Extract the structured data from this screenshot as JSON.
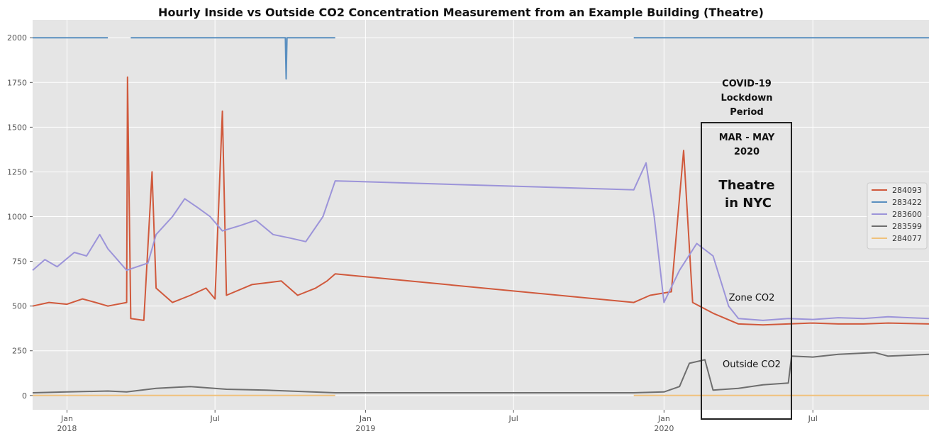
{
  "chart_data": {
    "type": "line",
    "title": "Hourly Inside vs Outside CO2 Concentration Measurement from an Example Building (Theatre)",
    "xlabel": "",
    "ylabel": "",
    "ylim": [
      -80,
      2100
    ],
    "xlim": [
      "2017-11-20",
      "2020-11-20"
    ],
    "grid": true,
    "legend_position": "right",
    "y_ticks": [
      0,
      250,
      500,
      750,
      1000,
      1250,
      1500,
      1750,
      2000
    ],
    "x_ticks": [
      {
        "date": "2018-01-01",
        "label": "Jan",
        "year": "2018"
      },
      {
        "date": "2018-07-01",
        "label": "Jul",
        "year": ""
      },
      {
        "date": "2019-01-01",
        "label": "Jan",
        "year": "2019"
      },
      {
        "date": "2019-07-01",
        "label": "Jul",
        "year": ""
      },
      {
        "date": "2020-01-01",
        "label": "Jan",
        "year": "2020"
      },
      {
        "date": "2020-07-01",
        "label": "Jul",
        "year": ""
      }
    ],
    "series": [
      {
        "name": "284093",
        "color": "#d0593c",
        "points": [
          [
            "2017-11-20",
            500
          ],
          [
            "2017-12-10",
            520
          ],
          [
            "2018-01-01",
            510
          ],
          [
            "2018-01-20",
            540
          ],
          [
            "2018-02-05",
            520
          ],
          [
            "2018-02-20",
            500
          ],
          [
            "2018-03-15",
            520
          ],
          [
            "2018-03-16",
            1780
          ],
          [
            "2018-03-20",
            430
          ],
          [
            "2018-04-05",
            420
          ],
          [
            "2018-04-15",
            1250
          ],
          [
            "2018-04-20",
            600
          ],
          [
            "2018-05-10",
            520
          ],
          [
            "2018-06-01",
            560
          ],
          [
            "2018-06-20",
            600
          ],
          [
            "2018-07-01",
            540
          ],
          [
            "2018-07-10",
            1590
          ],
          [
            "2018-07-15",
            560
          ],
          [
            "2018-08-15",
            620
          ],
          [
            "2018-09-20",
            640
          ],
          [
            "2018-10-10",
            560
          ],
          [
            "2018-11-01",
            600
          ],
          [
            "2018-11-15",
            640
          ],
          [
            "2018-11-25",
            680
          ],
          [
            "2019-11-25",
            520
          ],
          [
            "2019-12-15",
            560
          ],
          [
            "2020-01-10",
            580
          ],
          [
            "2020-01-25",
            1370
          ],
          [
            "2020-02-05",
            520
          ],
          [
            "2020-03-01",
            460
          ],
          [
            "2020-04-01",
            400
          ],
          [
            "2020-05-01",
            395
          ],
          [
            "2020-06-01",
            400
          ],
          [
            "2020-07-01",
            405
          ],
          [
            "2020-08-01",
            400
          ],
          [
            "2020-09-01",
            400
          ],
          [
            "2020-10-01",
            405
          ],
          [
            "2020-11-20",
            400
          ]
        ]
      },
      {
        "name": "283422",
        "color": "#5a8fc0",
        "points": [
          [
            "2017-11-20",
            2000
          ],
          [
            "2018-02-20",
            2000
          ],
          null,
          [
            "2018-03-20",
            2000
          ],
          [
            "2018-09-25",
            2000
          ],
          [
            "2018-09-26",
            1770
          ],
          [
            "2018-09-27",
            2000
          ],
          [
            "2018-11-25",
            2000
          ],
          null,
          [
            "2019-11-25",
            2000
          ],
          [
            "2020-11-20",
            2000
          ]
        ]
      },
      {
        "name": "283600",
        "color": "#9c94d9",
        "points": [
          [
            "2017-11-20",
            700
          ],
          [
            "2017-12-05",
            760
          ],
          [
            "2017-12-20",
            720
          ],
          [
            "2018-01-10",
            800
          ],
          [
            "2018-01-25",
            780
          ],
          [
            "2018-02-10",
            900
          ],
          [
            "2018-02-20",
            820
          ],
          [
            "2018-03-15",
            700
          ],
          [
            "2018-04-10",
            740
          ],
          [
            "2018-04-20",
            900
          ],
          [
            "2018-05-10",
            1000
          ],
          [
            "2018-05-25",
            1100
          ],
          [
            "2018-06-10",
            1050
          ],
          [
            "2018-06-25",
            1000
          ],
          [
            "2018-07-10",
            920
          ],
          [
            "2018-08-01",
            950
          ],
          [
            "2018-08-20",
            980
          ],
          [
            "2018-09-10",
            900
          ],
          [
            "2018-10-01",
            880
          ],
          [
            "2018-10-20",
            860
          ],
          [
            "2018-11-10",
            1000
          ],
          [
            "2018-11-25",
            1200
          ],
          [
            "2019-11-25",
            1150
          ],
          [
            "2019-12-10",
            1300
          ],
          [
            "2019-12-20",
            1000
          ],
          [
            "2020-01-01",
            520
          ],
          [
            "2020-01-20",
            700
          ],
          [
            "2020-02-10",
            850
          ],
          [
            "2020-03-01",
            780
          ],
          [
            "2020-03-20",
            500
          ],
          [
            "2020-04-01",
            430
          ],
          [
            "2020-05-01",
            420
          ],
          [
            "2020-06-01",
            430
          ],
          [
            "2020-07-01",
            425
          ],
          [
            "2020-08-01",
            435
          ],
          [
            "2020-09-01",
            430
          ],
          [
            "2020-10-01",
            440
          ],
          [
            "2020-11-20",
            430
          ]
        ]
      },
      {
        "name": "283599",
        "color": "#6e6e6e",
        "points": [
          [
            "2017-11-20",
            15
          ],
          [
            "2018-01-01",
            20
          ],
          [
            "2018-02-20",
            25
          ],
          [
            "2018-03-15",
            20
          ],
          [
            "2018-04-20",
            40
          ],
          [
            "2018-06-01",
            50
          ],
          [
            "2018-07-15",
            35
          ],
          [
            "2018-09-01",
            30
          ],
          [
            "2018-11-25",
            15
          ],
          [
            "2019-11-25",
            15
          ],
          [
            "2020-01-01",
            20
          ],
          [
            "2020-01-20",
            50
          ],
          [
            "2020-02-01",
            180
          ],
          [
            "2020-02-20",
            200
          ],
          [
            "2020-03-01",
            30
          ],
          [
            "2020-04-01",
            40
          ],
          [
            "2020-05-01",
            60
          ],
          [
            "2020-06-01",
            70
          ],
          [
            "2020-06-05",
            220
          ],
          [
            "2020-07-01",
            215
          ],
          [
            "2020-08-01",
            230
          ],
          [
            "2020-09-15",
            240
          ],
          [
            "2020-10-01",
            220
          ],
          [
            "2020-11-20",
            230
          ]
        ]
      },
      {
        "name": "284077",
        "color": "#f0c27c",
        "points": [
          [
            "2017-11-20",
            0
          ],
          [
            "2018-11-25",
            0
          ],
          null,
          [
            "2019-11-25",
            0
          ],
          [
            "2020-11-20",
            0
          ]
        ]
      }
    ],
    "annotations": {
      "covid_title": [
        "COVID-19",
        "Lockdown",
        "Period"
      ],
      "covid_months": [
        "MAR - MAY",
        "2020"
      ],
      "location": [
        "Theatre",
        "in NYC"
      ],
      "zone_label": "Zone CO2",
      "outside_label": "Outside CO2"
    }
  }
}
